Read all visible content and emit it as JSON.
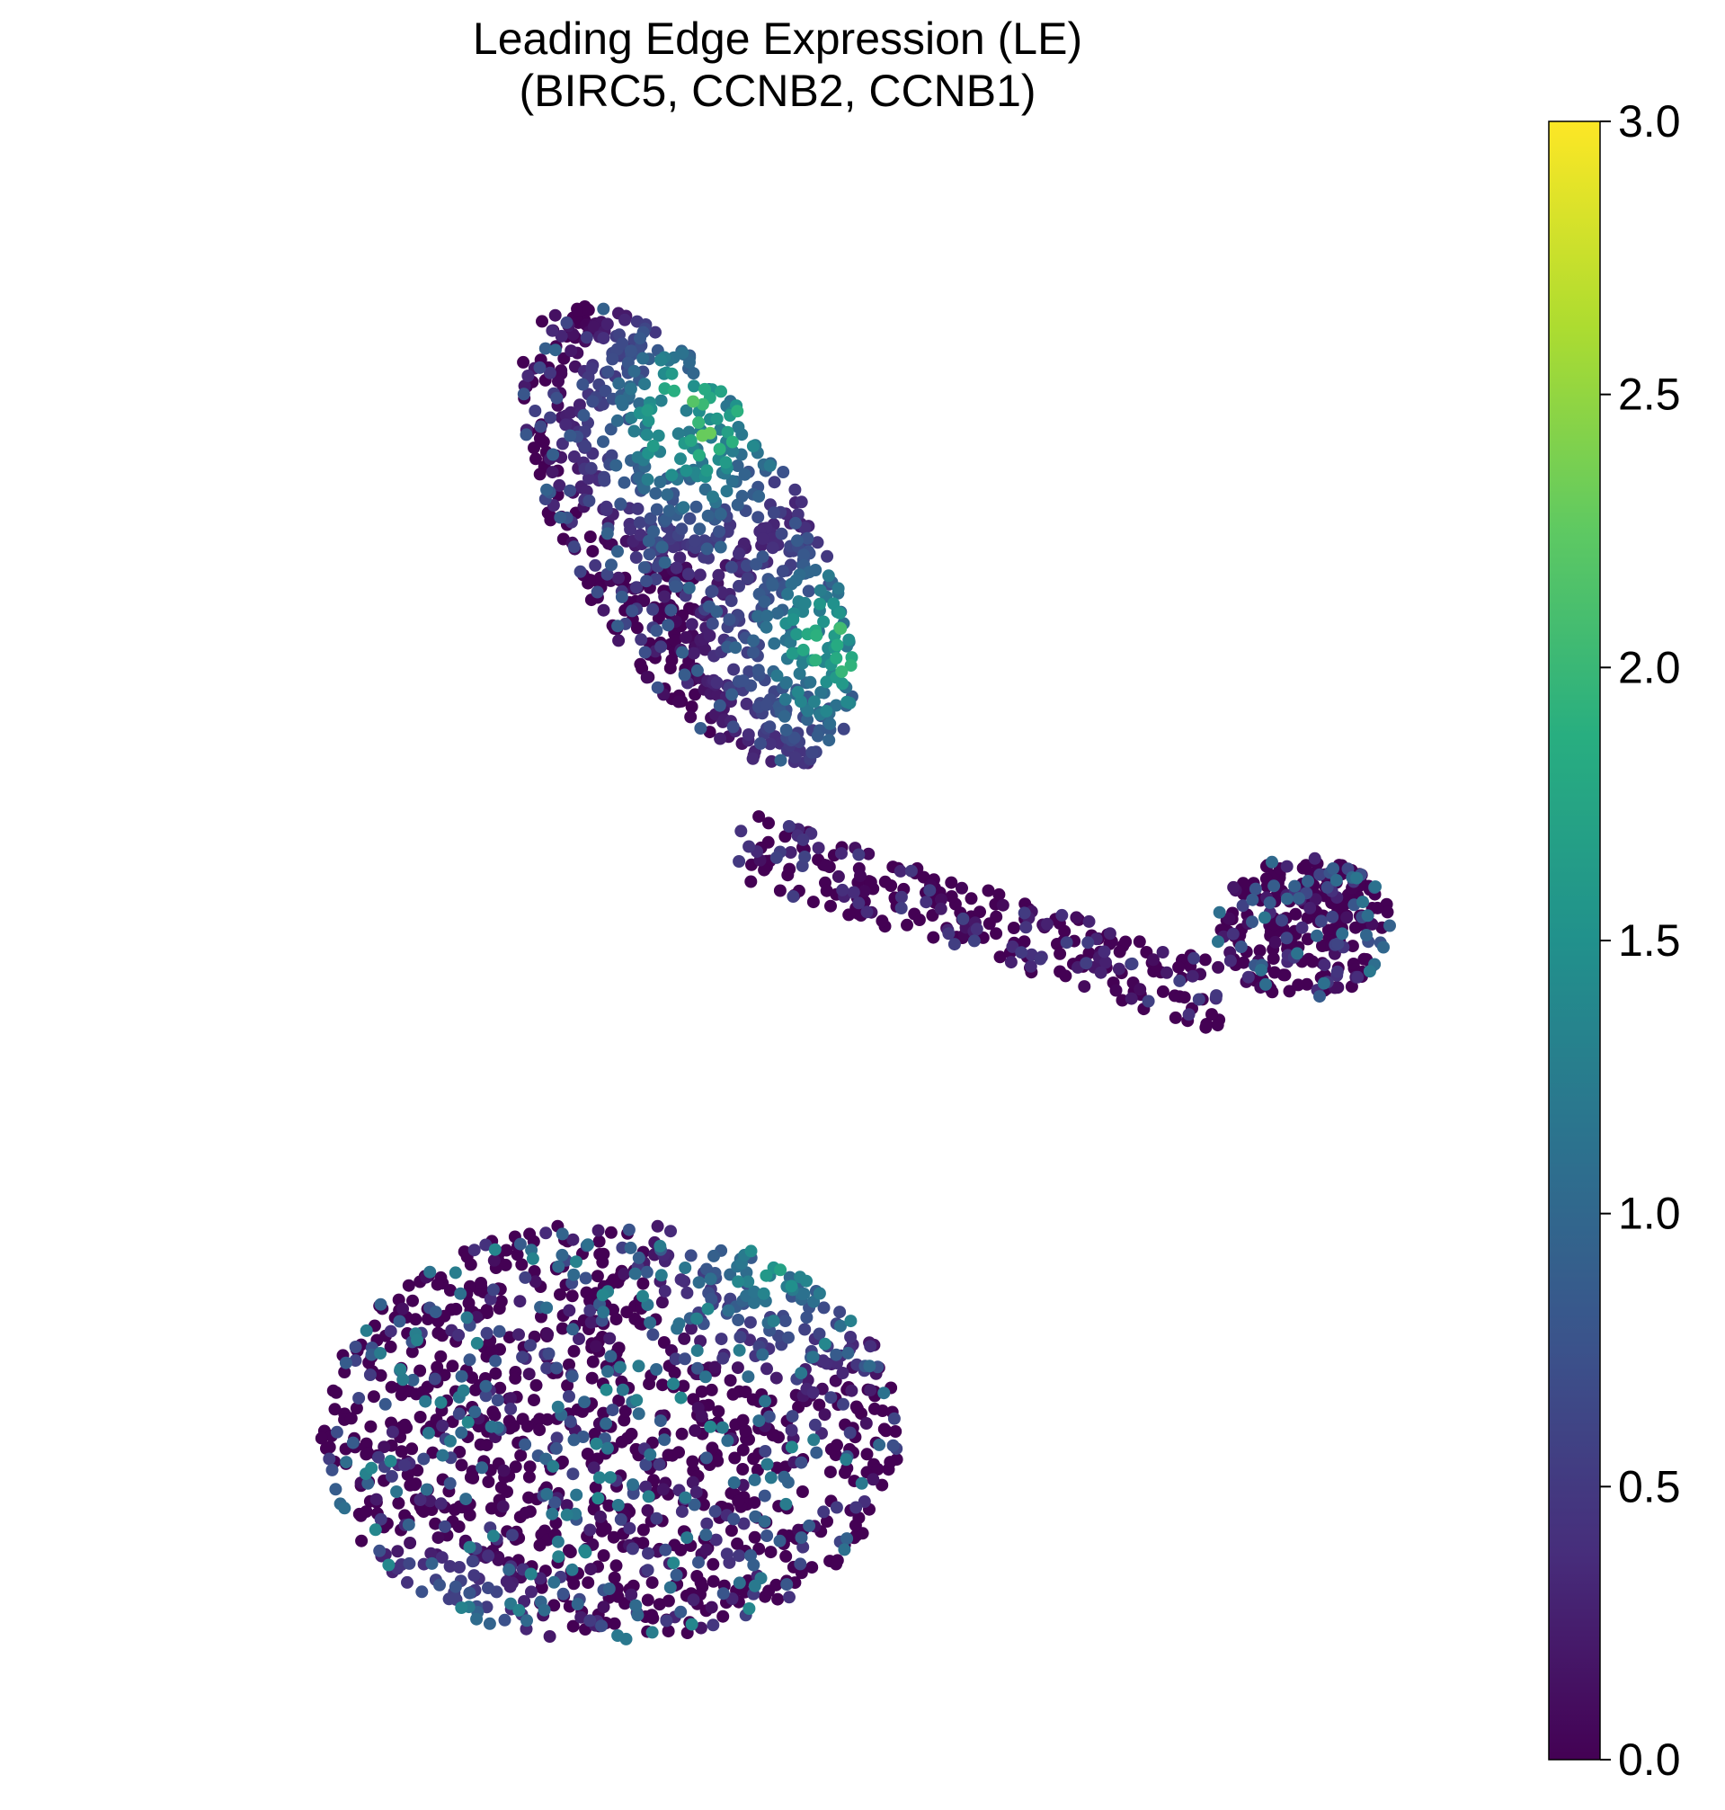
{
  "chart_data": {
    "type": "scatter",
    "title": "Leading Edge Expression (LE)",
    "subtitle": "(BIRC5, CCNB2, CCNB1)",
    "xlabel": "",
    "ylabel": "",
    "axes_visible": false,
    "grid": false,
    "colormap": "viridis",
    "colorbar": {
      "min": 0.0,
      "max": 3.0,
      "ticks": [
        "0.0",
        "0.5",
        "1.0",
        "1.5",
        "2.0",
        "2.5",
        "3.0"
      ],
      "position": "right"
    },
    "regions": [
      {
        "name": "upper cluster",
        "cx": 0.33,
        "cy": 0.66,
        "rx": 0.19,
        "ry": 0.33,
        "base_level": 0.25
      },
      {
        "name": "lower cluster",
        "cx": 0.22,
        "cy": -0.62,
        "rx": 0.42,
        "ry": 0.3,
        "base_level": 0.35
      },
      {
        "name": "bridge",
        "cx": 0.75,
        "cy": 0.05,
        "rx": 0.35,
        "ry": 0.05,
        "base_level": 0.15
      },
      {
        "name": "right cluster",
        "cx": 1.22,
        "cy": 0.1,
        "rx": 0.13,
        "ry": 0.1,
        "base_level": 0.3
      }
    ],
    "high_expression_hotspots": [
      {
        "x": 0.05,
        "y": 1.18,
        "level": 2.4
      },
      {
        "x": 0.35,
        "y": 0.82,
        "level": 2.2
      },
      {
        "x": 0.55,
        "y": 0.5,
        "level": 2.0
      },
      {
        "x": -0.4,
        "y": -0.98,
        "level": 2.4
      },
      {
        "x": -0.05,
        "y": -0.98,
        "level": 2.0
      },
      {
        "x": 0.48,
        "y": -0.35,
        "level": 1.8
      }
    ]
  }
}
